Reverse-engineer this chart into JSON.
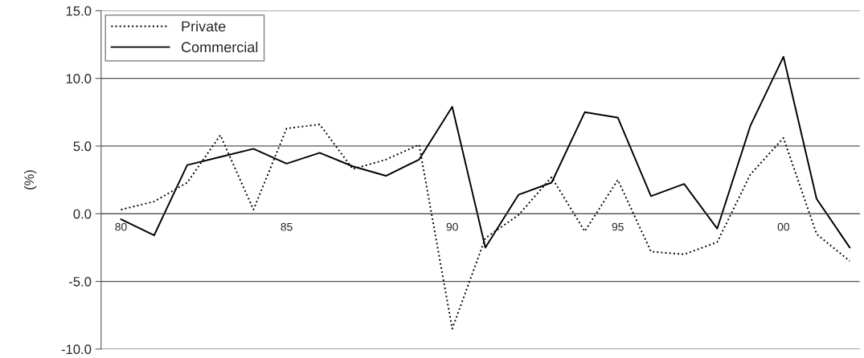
{
  "chart_data": {
    "type": "line",
    "ylabel": "(%)",
    "categories": [
      "80",
      null,
      null,
      null,
      null,
      "85",
      null,
      null,
      null,
      null,
      "90",
      null,
      null,
      null,
      null,
      "95",
      null,
      null,
      null,
      null,
      "00",
      null,
      null
    ],
    "series": [
      {
        "name": "Private",
        "color": "#000000",
        "line_style": "dotted",
        "values": [
          0.3,
          0.9,
          2.3,
          5.8,
          0.3,
          6.3,
          6.6,
          3.3,
          4.0,
          5.1,
          -8.5,
          -1.8,
          -0.1,
          2.7,
          -1.3,
          2.5,
          -2.8,
          -3.0,
          -2.1,
          2.9,
          5.6,
          -1.5,
          -3.5
        ]
      },
      {
        "name": "Commercial",
        "color": "#000000",
        "line_style": "solid",
        "values": [
          -0.4,
          -1.6,
          3.6,
          4.2,
          4.8,
          3.7,
          4.5,
          3.5,
          2.8,
          4.0,
          7.9,
          -2.5,
          1.4,
          2.3,
          7.5,
          7.1,
          1.3,
          2.2,
          -1.1,
          6.5,
          11.6,
          1.1,
          -2.5
        ]
      }
    ],
    "ylim": [
      -10,
      15
    ],
    "yticks": [
      {
        "value": -10,
        "label": "-10.0"
      },
      {
        "value": -5,
        "label": "-5.0"
      },
      {
        "value": 0,
        "label": "0.0"
      },
      {
        "value": 5,
        "label": "5.0"
      },
      {
        "value": 10,
        "label": "10.0"
      },
      {
        "value": 15,
        "label": "15.0"
      }
    ],
    "grid": "y",
    "legend": "top left",
    "marker": "none"
  }
}
